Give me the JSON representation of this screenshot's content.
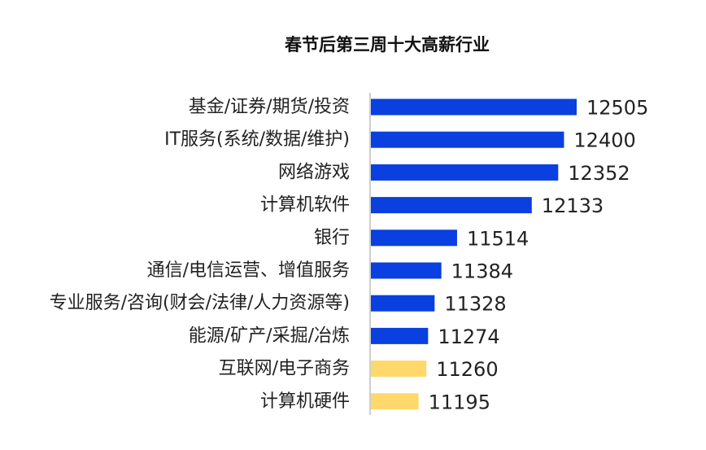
{
  "chart_data": {
    "type": "bar",
    "orientation": "horizontal",
    "title": "春节后第三周十大高薪行业",
    "xlabel": "",
    "ylabel": "",
    "xlim": [
      10800,
      12700
    ],
    "grid": false,
    "categories": [
      "基金/证券/期货/投资",
      "IT服务(系统/数据/维护)",
      "网络游戏",
      "计算机软件",
      "银行",
      "通信/电信运营、增值服务",
      "专业服务/咨询(财会/法律/人力资源等)",
      "能源/矿产/采掘/冶炼",
      "互联网/电子商务",
      "计算机硬件"
    ],
    "values": [
      12505,
      12400,
      12352,
      12133,
      11514,
      11384,
      11328,
      11274,
      11260,
      11195
    ],
    "bar_colors": [
      "#0a3fe0",
      "#0a3fe0",
      "#0a3fe0",
      "#0a3fe0",
      "#0a3fe0",
      "#0a3fe0",
      "#0a3fe0",
      "#0a3fe0",
      "#ffd86b",
      "#ffd86b"
    ],
    "data_labels": true
  }
}
